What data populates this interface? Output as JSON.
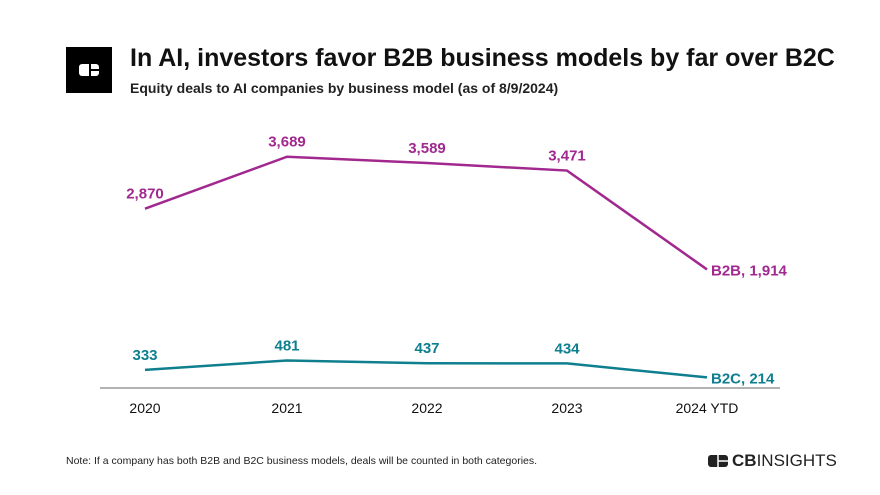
{
  "header": {
    "title": "In AI, investors favor B2B business models by far over B2C",
    "subtitle": "Equity deals to AI companies by business model (as of 8/9/2024)"
  },
  "footer": {
    "note": "Note: If a company has both B2B and B2C business models, deals will be counted in both categories.",
    "brand_bold": "CB",
    "brand_light": "INSIGHTS"
  },
  "chart_data": {
    "type": "line",
    "categories": [
      "2020",
      "2021",
      "2022",
      "2023",
      "2024 YTD"
    ],
    "series": [
      {
        "name": "B2B",
        "values": [
          2870,
          3689,
          3589,
          3471,
          1914
        ],
        "color": "#a1288f",
        "labels": [
          "2,870",
          "3,689",
          "3,589",
          "3,471",
          "B2B, 1,914"
        ]
      },
      {
        "name": "B2C",
        "values": [
          333,
          481,
          437,
          434,
          214
        ],
        "color": "#0f7f8f",
        "labels": [
          "333",
          "481",
          "437",
          "434",
          "B2C, 214"
        ]
      }
    ],
    "ylim": [
      0,
      3700
    ],
    "grid": false
  }
}
